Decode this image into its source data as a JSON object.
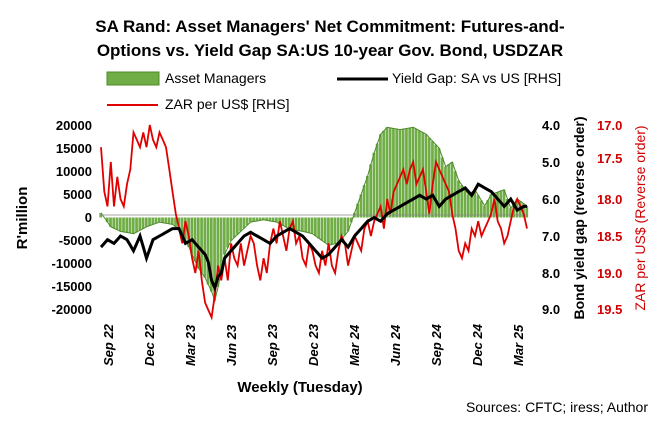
{
  "chart_data": {
    "type": "line",
    "title_line1": "SA Rand: Asset Managers' Net Commitment: Futures-and-",
    "title_line2": "Options vs. Yield Gap SA:US 10-year Gov. Bond, USDZAR",
    "xlabel": "Weekly (Tuesday)",
    "ylabel_left": "R'million",
    "ylabel_right1": "Bond yield gap (reverse order)",
    "ylabel_right2": "ZAR per US$ (Reverse order)",
    "source": "Sources: CFTC; iress; Author",
    "legend": [
      "Asset Managers",
      "Yield Gap: SA vs US [RHS]",
      "ZAR per US$ [RHS]"
    ],
    "x_ticks": [
      "Sep 22",
      "Dec 22",
      "Mar 23",
      "Jun 23",
      "Sep 23",
      "Dec 23",
      "Mar 24",
      "Jun 24",
      "Sep 24",
      "Dec 24",
      "Mar 25"
    ],
    "ylim_left": [
      -20000,
      20000
    ],
    "yticks_left": [
      "20000",
      "15000",
      "10000",
      "5000",
      "0",
      "-5000",
      "-10000",
      "-15000",
      "-20000"
    ],
    "ylim_right1_reversed": [
      4.0,
      9.0
    ],
    "yticks_right1": [
      "4.0",
      "5.0",
      "6.0",
      "7.0",
      "8.0",
      "9.0"
    ],
    "ylim_right2_reversed": [
      17.0,
      19.5
    ],
    "yticks_right2": [
      "17.0",
      "17.5",
      "18.0",
      "18.5",
      "19.0",
      "19.5"
    ],
    "grid": false,
    "legend_position": "top",
    "colors": {
      "asset_managers": "#70ad47",
      "asset_managers_edge": "#4e8a2a",
      "yield_gap": "#000000",
      "zar": "#e00000"
    },
    "series": [
      {
        "name": "Asset Managers",
        "axis": "left",
        "anchors": [
          [
            0,
            1000
          ],
          [
            3,
            -2000
          ],
          [
            6,
            -3000
          ],
          [
            10,
            -3500
          ],
          [
            14,
            -2000
          ],
          [
            18,
            -1000
          ],
          [
            22,
            -1500
          ],
          [
            25,
            -3000
          ],
          [
            28,
            -8000
          ],
          [
            30,
            -11000
          ],
          [
            32,
            -13000
          ],
          [
            34,
            -16000
          ],
          [
            35,
            -18000
          ],
          [
            36,
            -15000
          ],
          [
            38,
            -8000
          ],
          [
            40,
            -5000
          ],
          [
            43,
            -3000
          ],
          [
            46,
            -1000
          ],
          [
            50,
            -500
          ],
          [
            54,
            -1000
          ],
          [
            58,
            -2500
          ],
          [
            62,
            -3000
          ],
          [
            65,
            -3500
          ],
          [
            68,
            -5000
          ],
          [
            70,
            -6000
          ],
          [
            73,
            -5500
          ],
          [
            76,
            -3000
          ],
          [
            78,
            1000
          ],
          [
            80,
            5000
          ],
          [
            82,
            9000
          ],
          [
            84,
            14000
          ],
          [
            86,
            18000
          ],
          [
            88,
            19500
          ],
          [
            92,
            19000
          ],
          [
            96,
            19500
          ],
          [
            100,
            18000
          ],
          [
            104,
            15000
          ],
          [
            106,
            11000
          ],
          [
            108,
            12000
          ],
          [
            110,
            8000
          ],
          [
            113,
            5000
          ],
          [
            115,
            6000
          ],
          [
            118,
            2500
          ],
          [
            120,
            5000
          ],
          [
            124,
            6000
          ],
          [
            126,
            2000
          ],
          [
            128,
            4000
          ],
          [
            130,
            3000
          ],
          [
            131,
            2500
          ]
        ]
      },
      {
        "name": "Yield Gap: SA vs US [RHS]",
        "axis": "right1",
        "anchors": [
          [
            0,
            7.3
          ],
          [
            2,
            7.1
          ],
          [
            4,
            7.2
          ],
          [
            6,
            7.0
          ],
          [
            8,
            7.1
          ],
          [
            10,
            7.4
          ],
          [
            12,
            7.0
          ],
          [
            14,
            7.6
          ],
          [
            16,
            7.1
          ],
          [
            18,
            7.0
          ],
          [
            20,
            6.9
          ],
          [
            22,
            6.8
          ],
          [
            24,
            6.8
          ],
          [
            25,
            7.0
          ],
          [
            26,
            7.2
          ],
          [
            28,
            7.1
          ],
          [
            30,
            7.3
          ],
          [
            32,
            7.5
          ],
          [
            33,
            7.7
          ],
          [
            34,
            8.2
          ],
          [
            35,
            8.4
          ],
          [
            36,
            8.1
          ],
          [
            37,
            8.0
          ],
          [
            38,
            7.6
          ],
          [
            40,
            7.4
          ],
          [
            42,
            7.2
          ],
          [
            44,
            7.0
          ],
          [
            46,
            6.9
          ],
          [
            48,
            7.0
          ],
          [
            50,
            7.1
          ],
          [
            52,
            7.2
          ],
          [
            54,
            7.0
          ],
          [
            56,
            6.9
          ],
          [
            58,
            6.8
          ],
          [
            60,
            6.9
          ],
          [
            62,
            7.0
          ],
          [
            64,
            7.2
          ],
          [
            66,
            7.4
          ],
          [
            68,
            7.6
          ],
          [
            70,
            7.5
          ],
          [
            72,
            7.3
          ],
          [
            74,
            7.1
          ],
          [
            76,
            7.3
          ],
          [
            78,
            7.0
          ],
          [
            80,
            6.8
          ],
          [
            82,
            6.6
          ],
          [
            84,
            6.5
          ],
          [
            86,
            6.6
          ],
          [
            88,
            6.4
          ],
          [
            90,
            6.3
          ],
          [
            92,
            6.2
          ],
          [
            94,
            6.1
          ],
          [
            96,
            6.0
          ],
          [
            98,
            5.9
          ],
          [
            100,
            6.0
          ],
          [
            102,
            5.9
          ],
          [
            104,
            6.2
          ],
          [
            106,
            6.0
          ],
          [
            108,
            5.9
          ],
          [
            110,
            5.8
          ],
          [
            112,
            5.7
          ],
          [
            114,
            5.9
          ],
          [
            116,
            5.6
          ],
          [
            118,
            5.7
          ],
          [
            120,
            5.8
          ],
          [
            122,
            6.0
          ],
          [
            124,
            6.2
          ],
          [
            126,
            6.0
          ],
          [
            128,
            6.3
          ],
          [
            130,
            6.2
          ],
          [
            131,
            6.2
          ]
        ]
      },
      {
        "name": "ZAR per US$ [RHS]",
        "axis": "right2",
        "anchors": [
          [
            0,
            17.3
          ],
          [
            1,
            17.9
          ],
          [
            2,
            18.1
          ],
          [
            3,
            17.5
          ],
          [
            4,
            18.1
          ],
          [
            5,
            17.7
          ],
          [
            6,
            18.0
          ],
          [
            7,
            18.1
          ],
          [
            8,
            17.8
          ],
          [
            9,
            17.6
          ],
          [
            10,
            17.1
          ],
          [
            11,
            17.2
          ],
          [
            12,
            17.3
          ],
          [
            13,
            17.1
          ],
          [
            14,
            17.3
          ],
          [
            15,
            17.0
          ],
          [
            16,
            17.2
          ],
          [
            17,
            17.3
          ],
          [
            18,
            17.1
          ],
          [
            19,
            17.2
          ],
          [
            20,
            17.3
          ],
          [
            21,
            17.6
          ],
          [
            22,
            17.9
          ],
          [
            23,
            18.2
          ],
          [
            24,
            18.4
          ],
          [
            25,
            18.6
          ],
          [
            26,
            18.3
          ],
          [
            27,
            18.5
          ],
          [
            28,
            18.8
          ],
          [
            29,
            19.0
          ],
          [
            30,
            18.7
          ],
          [
            31,
            19.1
          ],
          [
            32,
            19.4
          ],
          [
            33,
            19.5
          ],
          [
            34,
            19.6
          ],
          [
            35,
            19.3
          ],
          [
            36,
            18.9
          ],
          [
            37,
            19.1
          ],
          [
            38,
            18.8
          ],
          [
            39,
            19.1
          ],
          [
            40,
            18.6
          ],
          [
            41,
            18.8
          ],
          [
            42,
            18.9
          ],
          [
            43,
            18.6
          ],
          [
            44,
            18.9
          ],
          [
            45,
            18.7
          ],
          [
            46,
            18.5
          ],
          [
            47,
            18.6
          ],
          [
            48,
            18.9
          ],
          [
            49,
            19.1
          ],
          [
            50,
            18.8
          ],
          [
            51,
            19.0
          ],
          [
            52,
            18.6
          ],
          [
            53,
            18.4
          ],
          [
            54,
            18.6
          ],
          [
            55,
            18.3
          ],
          [
            56,
            18.5
          ],
          [
            57,
            18.7
          ],
          [
            58,
            18.4
          ],
          [
            59,
            18.3
          ],
          [
            60,
            18.6
          ],
          [
            61,
            18.5
          ],
          [
            62,
            18.8
          ],
          [
            63,
            18.9
          ],
          [
            64,
            18.6
          ],
          [
            65,
            18.7
          ],
          [
            66,
            18.9
          ],
          [
            67,
            19.0
          ],
          [
            68,
            18.7
          ],
          [
            69,
            18.9
          ],
          [
            70,
            18.6
          ],
          [
            71,
            18.9
          ],
          [
            72,
            19.0
          ],
          [
            73,
            18.7
          ],
          [
            74,
            18.5
          ],
          [
            75,
            18.6
          ],
          [
            76,
            18.9
          ],
          [
            77,
            18.7
          ],
          [
            78,
            18.5
          ],
          [
            79,
            18.6
          ],
          [
            80,
            18.7
          ],
          [
            81,
            18.4
          ],
          [
            82,
            18.3
          ],
          [
            83,
            18.5
          ],
          [
            84,
            18.3
          ],
          [
            85,
            18.2
          ],
          [
            86,
            18.1
          ],
          [
            87,
            18.4
          ],
          [
            88,
            18.0
          ],
          [
            89,
            18.2
          ],
          [
            90,
            17.9
          ],
          [
            91,
            17.8
          ],
          [
            92,
            17.7
          ],
          [
            93,
            17.6
          ],
          [
            94,
            17.8
          ],
          [
            95,
            17.6
          ],
          [
            96,
            17.5
          ],
          [
            97,
            17.8
          ],
          [
            98,
            17.7
          ],
          [
            99,
            17.6
          ],
          [
            100,
            17.9
          ],
          [
            101,
            18.2
          ],
          [
            102,
            17.8
          ],
          [
            103,
            17.5
          ],
          [
            104,
            17.6
          ],
          [
            105,
            17.7
          ],
          [
            106,
            17.8
          ],
          [
            107,
            17.9
          ],
          [
            108,
            18.2
          ],
          [
            109,
            18.4
          ],
          [
            110,
            18.7
          ],
          [
            111,
            18.8
          ],
          [
            112,
            18.6
          ],
          [
            113,
            18.7
          ],
          [
            114,
            18.4
          ],
          [
            115,
            18.5
          ],
          [
            116,
            18.3
          ],
          [
            117,
            18.5
          ],
          [
            118,
            18.4
          ],
          [
            119,
            18.3
          ],
          [
            120,
            18.2
          ],
          [
            121,
            18.0
          ],
          [
            122,
            18.3
          ],
          [
            123,
            18.4
          ],
          [
            124,
            18.6
          ],
          [
            125,
            18.5
          ],
          [
            126,
            18.3
          ],
          [
            127,
            18.1
          ],
          [
            128,
            18.0
          ],
          [
            129,
            18.1
          ],
          [
            130,
            18.2
          ],
          [
            131,
            18.4
          ]
        ]
      }
    ]
  }
}
